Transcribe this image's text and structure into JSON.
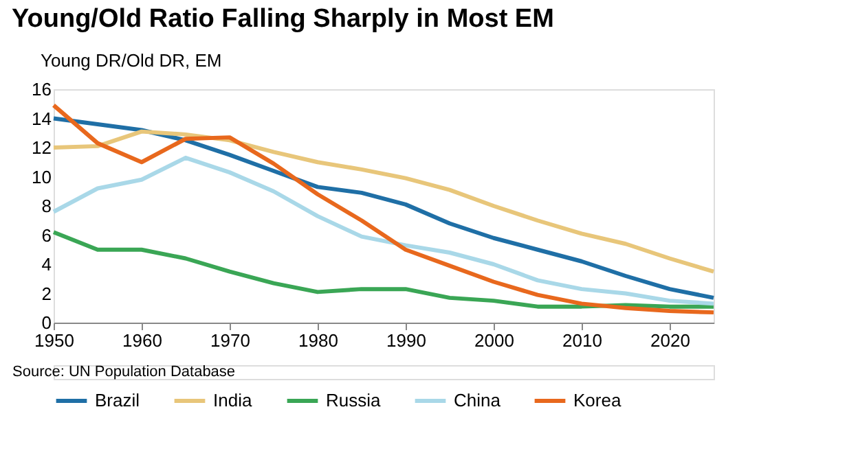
{
  "chart_data": {
    "type": "line",
    "title": "Young/Old Ratio Falling Sharply in Most EM",
    "ylabel": "Young DR/Old DR, EM",
    "x": [
      1950,
      1955,
      1960,
      1965,
      1970,
      1975,
      1980,
      1985,
      1990,
      1995,
      2000,
      2005,
      2010,
      2015,
      2020,
      2025
    ],
    "series": [
      {
        "name": "Brazil",
        "color": "#1f6fa6",
        "values": [
          14.0,
          13.6,
          13.2,
          12.5,
          11.5,
          10.4,
          9.3,
          8.9,
          8.1,
          6.8,
          5.8,
          5.0,
          4.2,
          3.2,
          2.3,
          1.7
        ]
      },
      {
        "name": "India",
        "color": "#e8c67a",
        "values": [
          12.0,
          12.1,
          13.1,
          12.9,
          12.5,
          11.7,
          11.0,
          10.5,
          9.9,
          9.1,
          8.0,
          7.0,
          6.1,
          5.4,
          4.4,
          3.5
        ]
      },
      {
        "name": "Russia",
        "color": "#3aa655",
        "values": [
          6.2,
          5.0,
          5.0,
          4.4,
          3.5,
          2.7,
          2.1,
          2.3,
          2.3,
          1.7,
          1.5,
          1.1,
          1.1,
          1.2,
          1.1,
          1.1
        ]
      },
      {
        "name": "China",
        "color": "#a9d8e8",
        "values": [
          7.6,
          9.2,
          9.8,
          11.3,
          10.3,
          9.0,
          7.3,
          5.9,
          5.3,
          4.8,
          4.0,
          2.9,
          2.3,
          2.0,
          1.5,
          1.3
        ]
      },
      {
        "name": "Korea",
        "color": "#e8681d",
        "values": [
          14.9,
          12.3,
          11.0,
          12.6,
          12.7,
          10.9,
          8.8,
          7.0,
          5.0,
          3.9,
          2.8,
          1.9,
          1.3,
          1.0,
          0.8,
          0.7
        ]
      }
    ],
    "xlim": [
      1950,
      2025
    ],
    "xticks": [
      1950,
      1960,
      1970,
      1980,
      1990,
      2000,
      2010,
      2020
    ],
    "ylim": [
      0,
      16
    ],
    "yticks": [
      0,
      2,
      4,
      6,
      8,
      10,
      12,
      14,
      16
    ],
    "grid": false,
    "legend": "bottom",
    "marker": "none",
    "line_style": "solid",
    "annotations": [
      "Source: UN Population Database"
    ]
  }
}
